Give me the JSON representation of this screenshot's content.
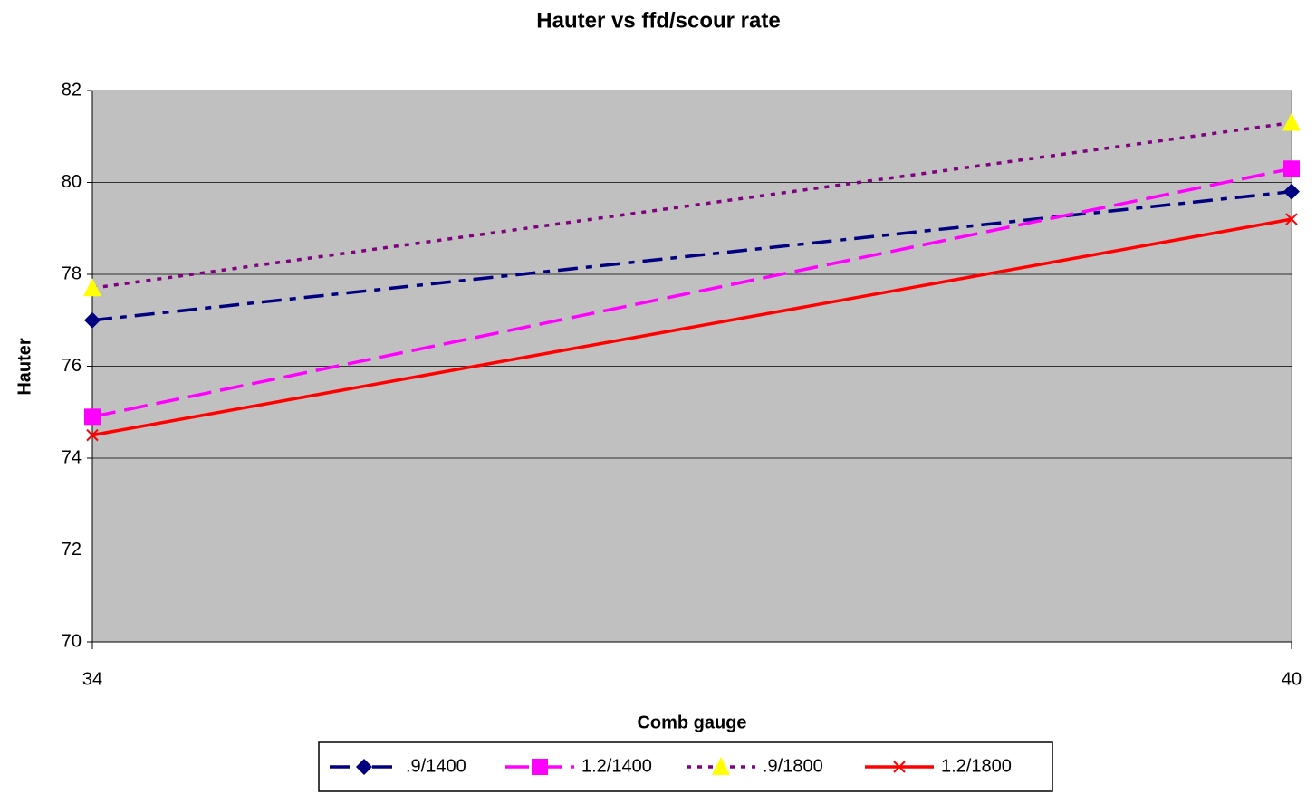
{
  "chart_data": {
    "type": "line",
    "title": "Hauter vs ffd/scour rate",
    "x_label": "Comb gauge",
    "y_label": "Hauter",
    "x": [
      34,
      40
    ],
    "xlim": [
      34,
      40
    ],
    "xticks": [
      34,
      40
    ],
    "ylim": [
      70,
      82
    ],
    "yticks": [
      70,
      72,
      74,
      76,
      78,
      80,
      82
    ],
    "grid": true,
    "legend": "bottom",
    "series": [
      {
        "name": ".9/1400",
        "color": "#000080",
        "marker_color": "#000080",
        "marker": "diamond",
        "line_style": "dash-dot",
        "values": [
          77.0,
          79.8
        ]
      },
      {
        "name": "1.2/1400",
        "color": "#ff00ff",
        "marker_color": "#ff00ff",
        "marker": "square",
        "line_style": "dash",
        "values": [
          74.9,
          80.3
        ]
      },
      {
        "name": ".9/1800",
        "color": "#800080",
        "marker_color": "#ffff00",
        "marker": "triangle",
        "line_style": "dot",
        "values": [
          77.7,
          81.3
        ]
      },
      {
        "name": "1.2/1800",
        "color": "#ff0000",
        "marker_color": "#ff0000",
        "marker": "x",
        "line_style": "solid",
        "values": [
          74.5,
          79.2
        ]
      }
    ]
  }
}
